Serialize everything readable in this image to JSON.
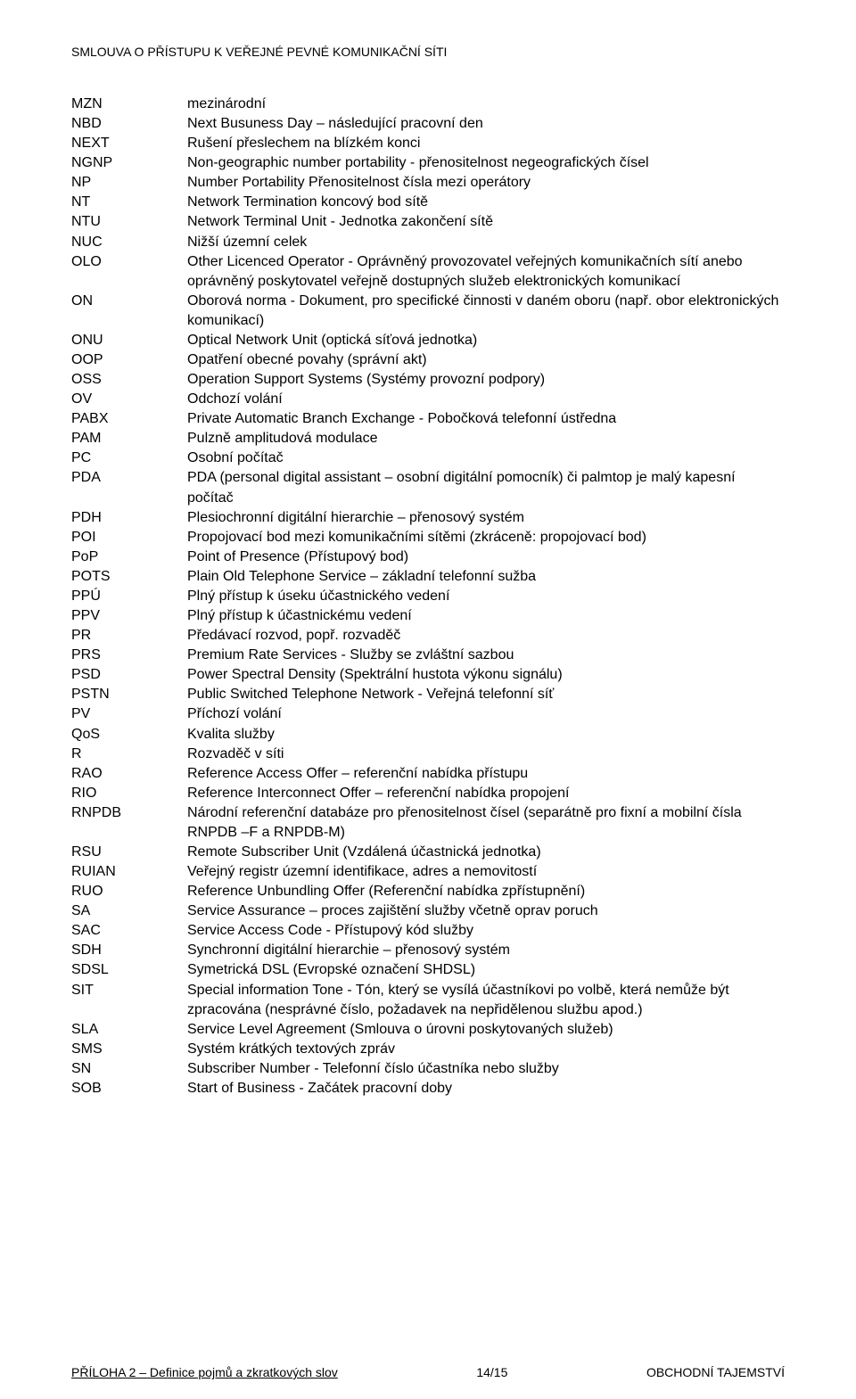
{
  "header": {
    "title": "SMLOUVA O PŘÍSTUPU K VEŘEJNÉ PEVNÉ KOMUNIKAČNÍ SÍTI"
  },
  "footer": {
    "left": "PŘÍLOHA 2 – Definice pojmů a zkratkových slov",
    "center": "14/15",
    "right": "OBCHODNÍ TAJEMSTVÍ"
  },
  "defs": [
    {
      "abbr": "MZN",
      "desc": "mezinárodní"
    },
    {
      "abbr": "NBD",
      "desc": "Next Busuness Day – následující pracovní den"
    },
    {
      "abbr": "NEXT",
      "desc": "Rušení přeslechem na blízkém konci"
    },
    {
      "abbr": "NGNP",
      "desc": "Non-geographic number portability - přenositelnost negeografických čísel"
    },
    {
      "abbr": "NP",
      "desc": "Number Portability Přenositelnost čísla mezi operátory"
    },
    {
      "abbr": "NT",
      "desc": "Network Termination koncový bod sítě"
    },
    {
      "abbr": "NTU",
      "desc": "Network Terminal Unit -  Jednotka zakončení sítě"
    },
    {
      "abbr": "NUC",
      "desc": "Nižší územní celek"
    },
    {
      "abbr": "OLO",
      "desc": "Other Licenced Operator - Oprávněný provozovatel veřejných komunikačních sítí anebo oprávněný poskytovatel veřejně dostupných služeb elektronických komunikací"
    },
    {
      "abbr": "ON",
      "desc": "Oborová norma - Dokument, pro specifické činnosti v daném oboru (např. obor elektronických komunikací)"
    },
    {
      "abbr": "ONU",
      "desc": "Optical Network Unit (optická síťová jednotka)"
    },
    {
      "abbr": "OOP",
      "desc": "Opatření obecné povahy (správní akt)"
    },
    {
      "abbr": "OSS",
      "desc": "Operation Support Systems (Systémy provozní podpory)"
    },
    {
      "abbr": "OV",
      "desc": "Odchozí volání"
    },
    {
      "abbr": "PABX",
      "desc": "Private Automatic Branch Exchange - Pobočková telefonní ústředna"
    },
    {
      "abbr": "PAM",
      "desc": "Pulzně amplitudová modulace"
    },
    {
      "abbr": "PC",
      "desc": "Osobní počítač"
    },
    {
      "abbr": "PDA",
      "desc": "PDA (personal digital assistant – osobní digitální pomocník) či palmtop je malý kapesní počítač"
    },
    {
      "abbr": "PDH",
      "desc": "Plesiochronní digitální hierarchie – přenosový systém"
    },
    {
      "abbr": "POI",
      "desc": "Propojovací bod mezi komunikačními sítěmi (zkráceně: propojovací bod)"
    },
    {
      "abbr": "PoP",
      "desc": "Point of Presence (Přístupový bod)"
    },
    {
      "abbr": "POTS",
      "desc": "Plain Old Telephone Service – základní telefonní sužba"
    },
    {
      "abbr": "PPÚ",
      "desc": "Plný přístup k úseku účastnického vedení"
    },
    {
      "abbr": "PPV",
      "desc": "Plný přístup k účastnickému vedení"
    },
    {
      "abbr": "PR",
      "desc": "Předávací rozvod, popř. rozvaděč"
    },
    {
      "abbr": "PRS",
      "desc": "Premium Rate Services - Služby se zvláštní sazbou"
    },
    {
      "abbr": "PSD",
      "desc": "Power Spectral Density (Spektrální hustota výkonu signálu)"
    },
    {
      "abbr": "PSTN",
      "desc": "Public Switched Telephone Network - Veřejná telefonní síť"
    },
    {
      "abbr": "PV",
      "desc": "Příchozí volání"
    },
    {
      "abbr": "QoS",
      "desc": "Kvalita služby"
    },
    {
      "abbr": "R",
      "desc": "Rozvaděč v síti"
    },
    {
      "abbr": "RAO",
      "desc": "Reference Access Offer – referenční nabídka přístupu"
    },
    {
      "abbr": "RIO",
      "desc": "Reference Interconnect Offer – referenční nabídka propojení"
    },
    {
      "abbr": "RNPDB",
      "desc": "Národní referenční databáze pro přenositelnost čísel (separátně pro fixní a mobilní čísla RNPDB –F a RNPDB-M)"
    },
    {
      "abbr": "RSU",
      "desc": "Remote Subscriber Unit (Vzdálená účastnická jednotka)"
    },
    {
      "abbr": "RUIAN",
      "desc": "Veřejný registr územní identifikace, adres a nemovitostí"
    },
    {
      "abbr": "RUO",
      "desc": "Reference Unbundling Offer (Referenční nabídka zpřístupnění)"
    },
    {
      "abbr": "SA",
      "desc": "Service Assurance – proces zajištění služby včetně oprav poruch"
    },
    {
      "abbr": "SAC",
      "desc": "Service Access Code - Přístupový kód služby"
    },
    {
      "abbr": "SDH",
      "desc": "Synchronní digitální hierarchie – přenosový systém"
    },
    {
      "abbr": "SDSL",
      "desc": "Symetrická DSL (Evropské označení SHDSL)"
    },
    {
      "abbr": "SIT",
      "desc": "Special information Tone - Tón, který se vysílá účastníkovi po volbě, která nemůže být zpracována (nesprávné číslo, požadavek na nepřidělenou službu apod.)"
    },
    {
      "abbr": "SLA",
      "desc": "Service Level Agreement (Smlouva o úrovni poskytovaných služeb)"
    },
    {
      "abbr": "SMS",
      "desc": "Systém krátkých textových zpráv"
    },
    {
      "abbr": "SN",
      "desc": "Subscriber Number - Telefonní číslo účastníka nebo služby"
    },
    {
      "abbr": "SOB",
      "desc": "Start of Business - Začátek pracovní doby"
    }
  ]
}
